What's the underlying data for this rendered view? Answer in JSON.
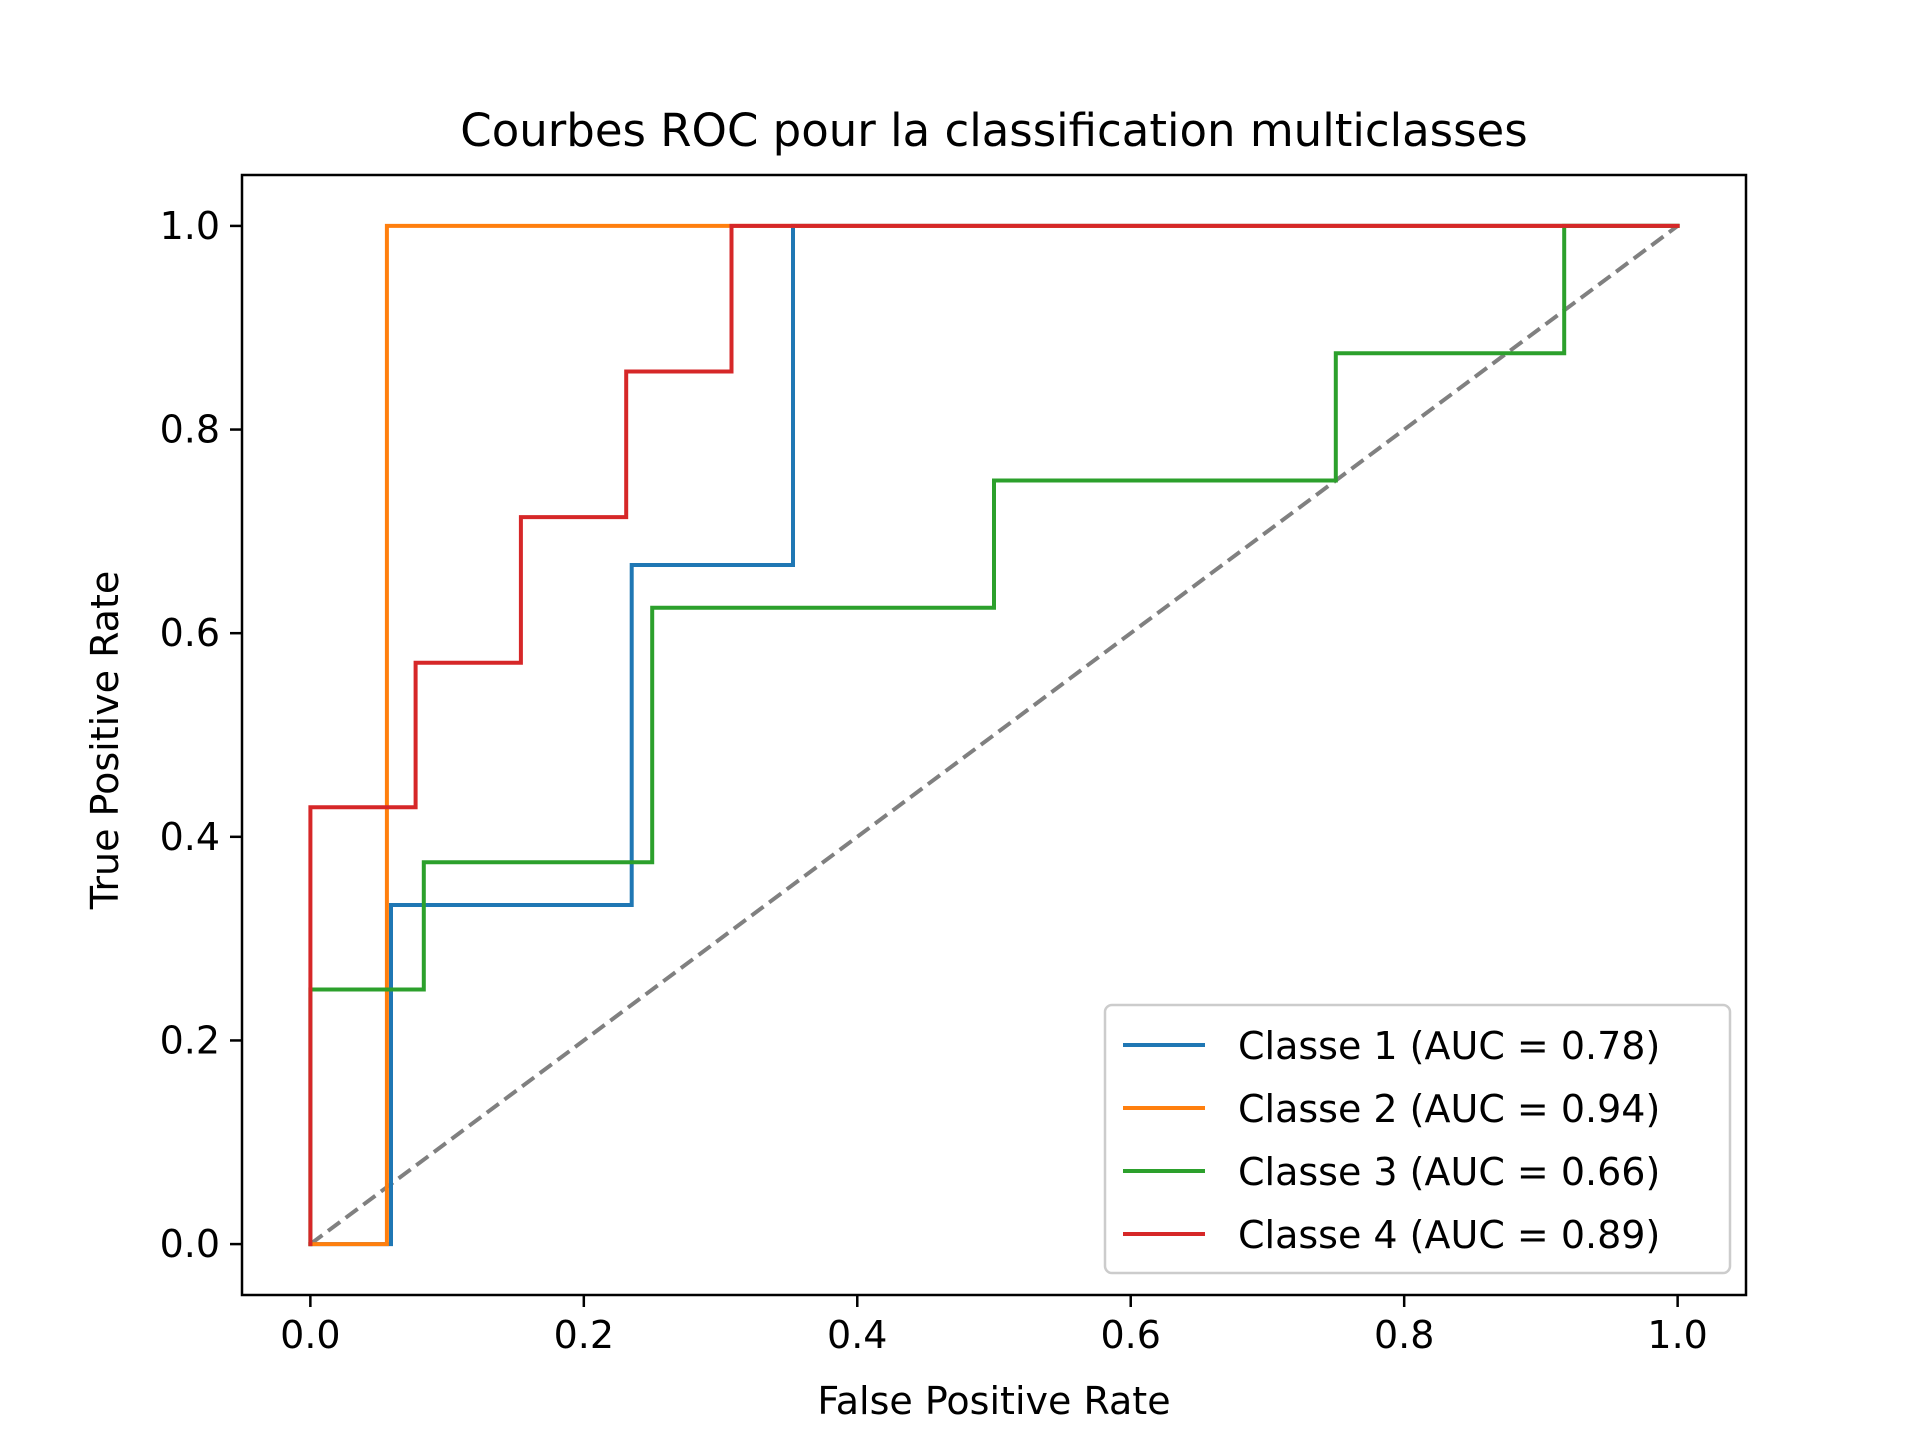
{
  "chart_data": {
    "type": "line",
    "title": "Courbes ROC pour la classification multiclasses",
    "xlabel": "False Positive Rate",
    "ylabel": "True Positive Rate",
    "xlim": [
      -0.05,
      1.05
    ],
    "ylim": [
      -0.05,
      1.05
    ],
    "xticks": [
      0.0,
      0.2,
      0.4,
      0.6,
      0.8,
      1.0
    ],
    "yticks": [
      0.0,
      0.2,
      0.4,
      0.6,
      0.8,
      1.0
    ],
    "tick_labels_x": [
      "0.0",
      "0.2",
      "0.4",
      "0.6",
      "0.8",
      "1.0"
    ],
    "tick_labels_y": [
      "0.0",
      "0.2",
      "0.4",
      "0.6",
      "0.8",
      "1.0"
    ],
    "grid": false,
    "legend_position": "lower-right",
    "series": [
      {
        "name": "Classe 1 (AUC = 0.78)",
        "color": "#1f77b4",
        "x": [
          0.0,
          0.059,
          0.059,
          0.235,
          0.235,
          0.353,
          0.353,
          1.0
        ],
        "y": [
          0.0,
          0.0,
          0.333,
          0.333,
          0.667,
          0.667,
          1.0,
          1.0
        ]
      },
      {
        "name": "Classe 2 (AUC = 0.94)",
        "color": "#ff7f0e",
        "x": [
          0.0,
          0.056,
          0.056,
          1.0
        ],
        "y": [
          0.0,
          0.0,
          1.0,
          1.0
        ]
      },
      {
        "name": "Classe 3 (AUC = 0.66)",
        "color": "#2ca02c",
        "x": [
          0.0,
          0.0,
          0.083,
          0.083,
          0.25,
          0.25,
          0.5,
          0.5,
          0.75,
          0.75,
          0.917,
          0.917,
          1.0
        ],
        "y": [
          0.0,
          0.25,
          0.25,
          0.375,
          0.375,
          0.625,
          0.625,
          0.75,
          0.75,
          0.875,
          0.875,
          1.0,
          1.0
        ]
      },
      {
        "name": "Classe 4 (AUC = 0.89)",
        "color": "#d62728",
        "x": [
          0.0,
          0.0,
          0.077,
          0.077,
          0.154,
          0.154,
          0.231,
          0.231,
          0.308,
          0.308,
          1.0
        ],
        "y": [
          0.0,
          0.429,
          0.429,
          0.571,
          0.571,
          0.714,
          0.714,
          0.857,
          0.857,
          1.0,
          1.0
        ]
      }
    ],
    "reference_line": {
      "x": [
        0,
        1
      ],
      "y": [
        0,
        1
      ],
      "color": "#808080",
      "style": "dashed"
    }
  }
}
